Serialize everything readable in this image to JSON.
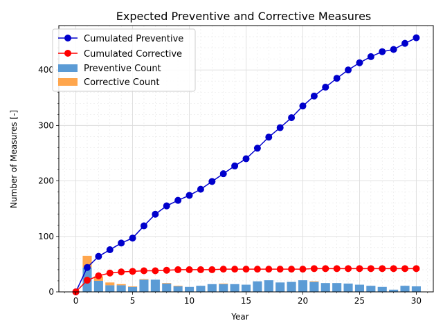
{
  "chart_data": {
    "type": "bar+line",
    "title": "Expected Preventive and Corrective Measures",
    "xlabel": "Year",
    "ylabel": "Number of Measures [-]",
    "xlim": [
      -1.5,
      31.5
    ],
    "ylim": [
      0,
      480
    ],
    "xticks": [
      0,
      5,
      10,
      15,
      20,
      25,
      30
    ],
    "yticks": [
      0,
      100,
      200,
      300,
      400
    ],
    "grid": true,
    "legend_position": "top-left",
    "years": [
      0,
      1,
      2,
      3,
      4,
      5,
      6,
      7,
      8,
      9,
      10,
      11,
      12,
      13,
      14,
      15,
      16,
      17,
      18,
      19,
      20,
      21,
      22,
      23,
      24,
      25,
      26,
      27,
      28,
      29,
      30
    ],
    "series": [
      {
        "name": "Cumulated Preventive",
        "kind": "line",
        "color": "#0000cc",
        "values": [
          0,
          44,
          64,
          76,
          88,
          97,
          119,
          140,
          155,
          165,
          174,
          185,
          199,
          213,
          227,
          240,
          259,
          279,
          296,
          314,
          335,
          353,
          369,
          385,
          400,
          413,
          424,
          433,
          437,
          448,
          458
        ]
      },
      {
        "name": "Cumulated Corrective",
        "kind": "line",
        "color": "#ff0000",
        "values": [
          0,
          21,
          29,
          34,
          36,
          37,
          38,
          38,
          39,
          40,
          40,
          40,
          40,
          41,
          41,
          41,
          41,
          41,
          41,
          41,
          41,
          42,
          42,
          42,
          42,
          42,
          42,
          42,
          42,
          42,
          42
        ]
      },
      {
        "name": "Preventive Count",
        "kind": "bar",
        "color": "#5b9bd5",
        "values": [
          0,
          44,
          20,
          12,
          12,
          9,
          22,
          22,
          15,
          10,
          9,
          11,
          14,
          14,
          14,
          13,
          19,
          21,
          17,
          18,
          21,
          18,
          16,
          16,
          15,
          13,
          11,
          9,
          4,
          11,
          10
        ]
      },
      {
        "name": "Corrective Count",
        "kind": "bar",
        "color": "#ffa64d",
        "values": [
          0,
          21,
          8,
          5,
          2,
          1,
          1,
          0,
          1,
          1,
          0,
          0,
          0,
          1,
          0,
          0,
          0,
          0,
          0,
          0,
          0,
          1,
          0,
          0,
          0,
          0,
          0,
          0,
          0,
          0,
          0
        ]
      }
    ],
    "legend": [
      "Cumulated Preventive",
      "Cumulated Corrective",
      "Preventive Count",
      "Corrective Count"
    ]
  }
}
